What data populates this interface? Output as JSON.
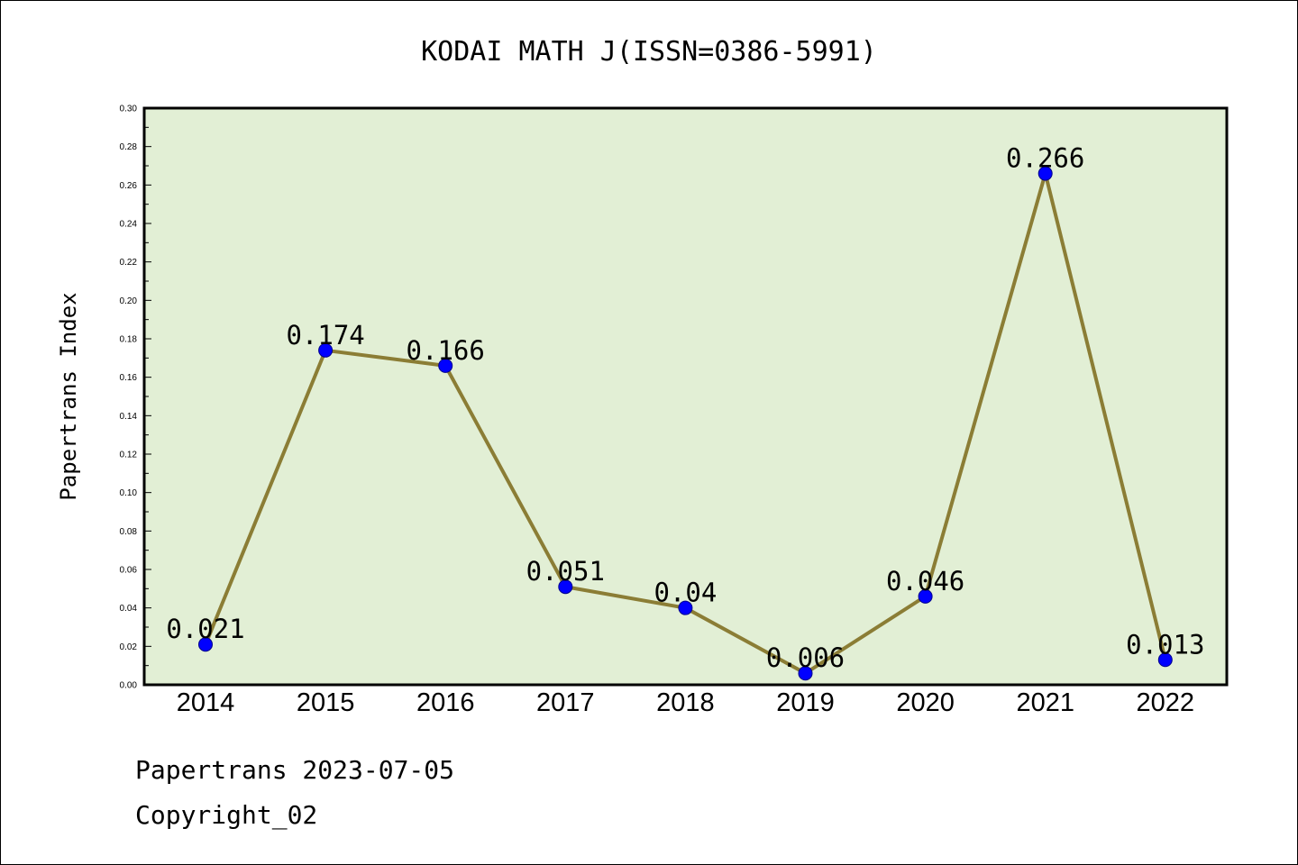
{
  "chart_data": {
    "type": "line",
    "title": "KODAI MATH J(ISSN=0386-5991)",
    "xlabel": "",
    "ylabel": "Papertrans Index",
    "categories": [
      "2014",
      "2015",
      "2016",
      "2017",
      "2018",
      "2019",
      "2020",
      "2021",
      "2022"
    ],
    "series": [
      {
        "values": [
          0.021,
          0.174,
          0.166,
          0.051,
          0.04,
          0.006,
          0.046,
          0.266,
          0.013
        ],
        "labels": [
          "0.021",
          "0.174",
          "0.166",
          "0.051",
          "0.04",
          "0.006",
          "0.046",
          "0.266",
          "0.013"
        ]
      }
    ],
    "ylim": [
      0,
      0.3
    ],
    "yticks": [
      "0.00",
      "0.02",
      "0.04",
      "0.06",
      "0.08",
      "0.10",
      "0.12",
      "0.14",
      "0.16",
      "0.18",
      "0.20",
      "0.22",
      "0.24",
      "0.26",
      "0.28",
      "0.30"
    ],
    "grid": false,
    "legend": "none"
  },
  "colors": {
    "plot_background": "#e2efd5",
    "line": "#8b7d35",
    "marker": "#0000ff"
  },
  "footer": {
    "line1": "Papertrans 2023-07-05",
    "line2": "Copyright_02"
  }
}
